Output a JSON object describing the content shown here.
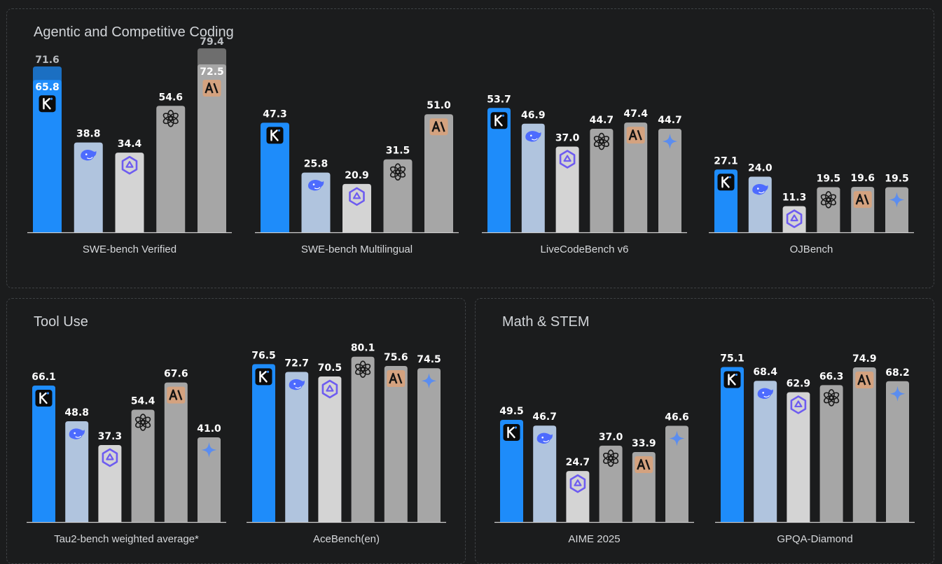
{
  "colors": {
    "background": "#1b1c1d",
    "panel_border": "#3e4144",
    "kimi": "#1e8cfa",
    "kimi_extra": "#1b6fc2",
    "deepseek": "#b0c4de",
    "qwen": "#d4d4d4",
    "openai": "#a6a6a6",
    "claude": "#a6a6a6",
    "claude_extra": "#6e6e6e",
    "gemini": "#a6a6a6",
    "value_text": "#ffffff",
    "extra_value_text": "#b9bcc0",
    "axis": "#d0d0d0"
  },
  "panels": [
    {
      "title": "Agentic and Competitive Coding"
    },
    {
      "title": "Tool Use"
    },
    {
      "title": "Math & STEM"
    }
  ],
  "model_icons": {
    "kimi": "kimi-k-logo-icon",
    "deepseek": "deepseek-whale-icon",
    "qwen": "qwen-star-icon",
    "openai": "openai-knot-icon",
    "claude": "anthropic-ai-icon",
    "gemini": "gemini-sparkle-icon"
  },
  "chart_data": [
    {
      "type": "bar",
      "panel": 0,
      "title": "SWE-bench Verified",
      "ylim": [
        0,
        100
      ],
      "bars": [
        {
          "model": "kimi",
          "value": 65.8,
          "extra": 71.6
        },
        {
          "model": "deepseek",
          "value": 38.8
        },
        {
          "model": "qwen",
          "value": 34.4
        },
        {
          "model": "openai",
          "value": 54.6
        },
        {
          "model": "claude",
          "value": 72.5,
          "extra": 79.4
        }
      ]
    },
    {
      "type": "bar",
      "panel": 0,
      "title": "SWE-bench Multilingual",
      "ylim": [
        0,
        100
      ],
      "bars": [
        {
          "model": "kimi",
          "value": 47.3
        },
        {
          "model": "deepseek",
          "value": 25.8
        },
        {
          "model": "qwen",
          "value": 20.9
        },
        {
          "model": "openai",
          "value": 31.5
        },
        {
          "model": "claude",
          "value": 51.0
        }
      ]
    },
    {
      "type": "bar",
      "panel": 0,
      "title": "LiveCodeBench v6",
      "ylim": [
        0,
        100
      ],
      "bars": [
        {
          "model": "kimi",
          "value": 53.7
        },
        {
          "model": "deepseek",
          "value": 46.9
        },
        {
          "model": "qwen",
          "value": 37.0
        },
        {
          "model": "openai",
          "value": 44.7
        },
        {
          "model": "claude",
          "value": 47.4
        },
        {
          "model": "gemini",
          "value": 44.7
        }
      ]
    },
    {
      "type": "bar",
      "panel": 0,
      "title": "OJBench",
      "ylim": [
        0,
        100
      ],
      "bars": [
        {
          "model": "kimi",
          "value": 27.1
        },
        {
          "model": "deepseek",
          "value": 24.0
        },
        {
          "model": "qwen",
          "value": 11.3
        },
        {
          "model": "openai",
          "value": 19.5
        },
        {
          "model": "claude",
          "value": 19.6
        },
        {
          "model": "gemini",
          "value": 19.5
        }
      ]
    },
    {
      "type": "bar",
      "panel": 1,
      "title": "Tau2-bench weighted average*",
      "ylim": [
        0,
        100
      ],
      "bars": [
        {
          "model": "kimi",
          "value": 66.1
        },
        {
          "model": "deepseek",
          "value": 48.8
        },
        {
          "model": "qwen",
          "value": 37.3
        },
        {
          "model": "openai",
          "value": 54.4
        },
        {
          "model": "claude",
          "value": 67.6
        },
        {
          "model": "gemini",
          "value": 41.0
        }
      ]
    },
    {
      "type": "bar",
      "panel": 1,
      "title": "AceBench(en)",
      "ylim": [
        0,
        100
      ],
      "bars": [
        {
          "model": "kimi",
          "value": 76.5
        },
        {
          "model": "deepseek",
          "value": 72.7
        },
        {
          "model": "qwen",
          "value": 70.5
        },
        {
          "model": "openai",
          "value": 80.1
        },
        {
          "model": "claude",
          "value": 75.6
        },
        {
          "model": "gemini",
          "value": 74.5
        }
      ]
    },
    {
      "type": "bar",
      "panel": 2,
      "title": "AIME 2025",
      "ylim": [
        0,
        100
      ],
      "bars": [
        {
          "model": "kimi",
          "value": 49.5
        },
        {
          "model": "deepseek",
          "value": 46.7
        },
        {
          "model": "qwen",
          "value": 24.7
        },
        {
          "model": "openai",
          "value": 37.0
        },
        {
          "model": "claude",
          "value": 33.9
        },
        {
          "model": "gemini",
          "value": 46.6
        }
      ]
    },
    {
      "type": "bar",
      "panel": 2,
      "title": "GPQA-Diamond",
      "ylim": [
        0,
        100
      ],
      "bars": [
        {
          "model": "kimi",
          "value": 75.1
        },
        {
          "model": "deepseek",
          "value": 68.4
        },
        {
          "model": "qwen",
          "value": 62.9
        },
        {
          "model": "openai",
          "value": 66.3
        },
        {
          "model": "claude",
          "value": 74.9
        },
        {
          "model": "gemini",
          "value": 68.2
        }
      ]
    }
  ]
}
